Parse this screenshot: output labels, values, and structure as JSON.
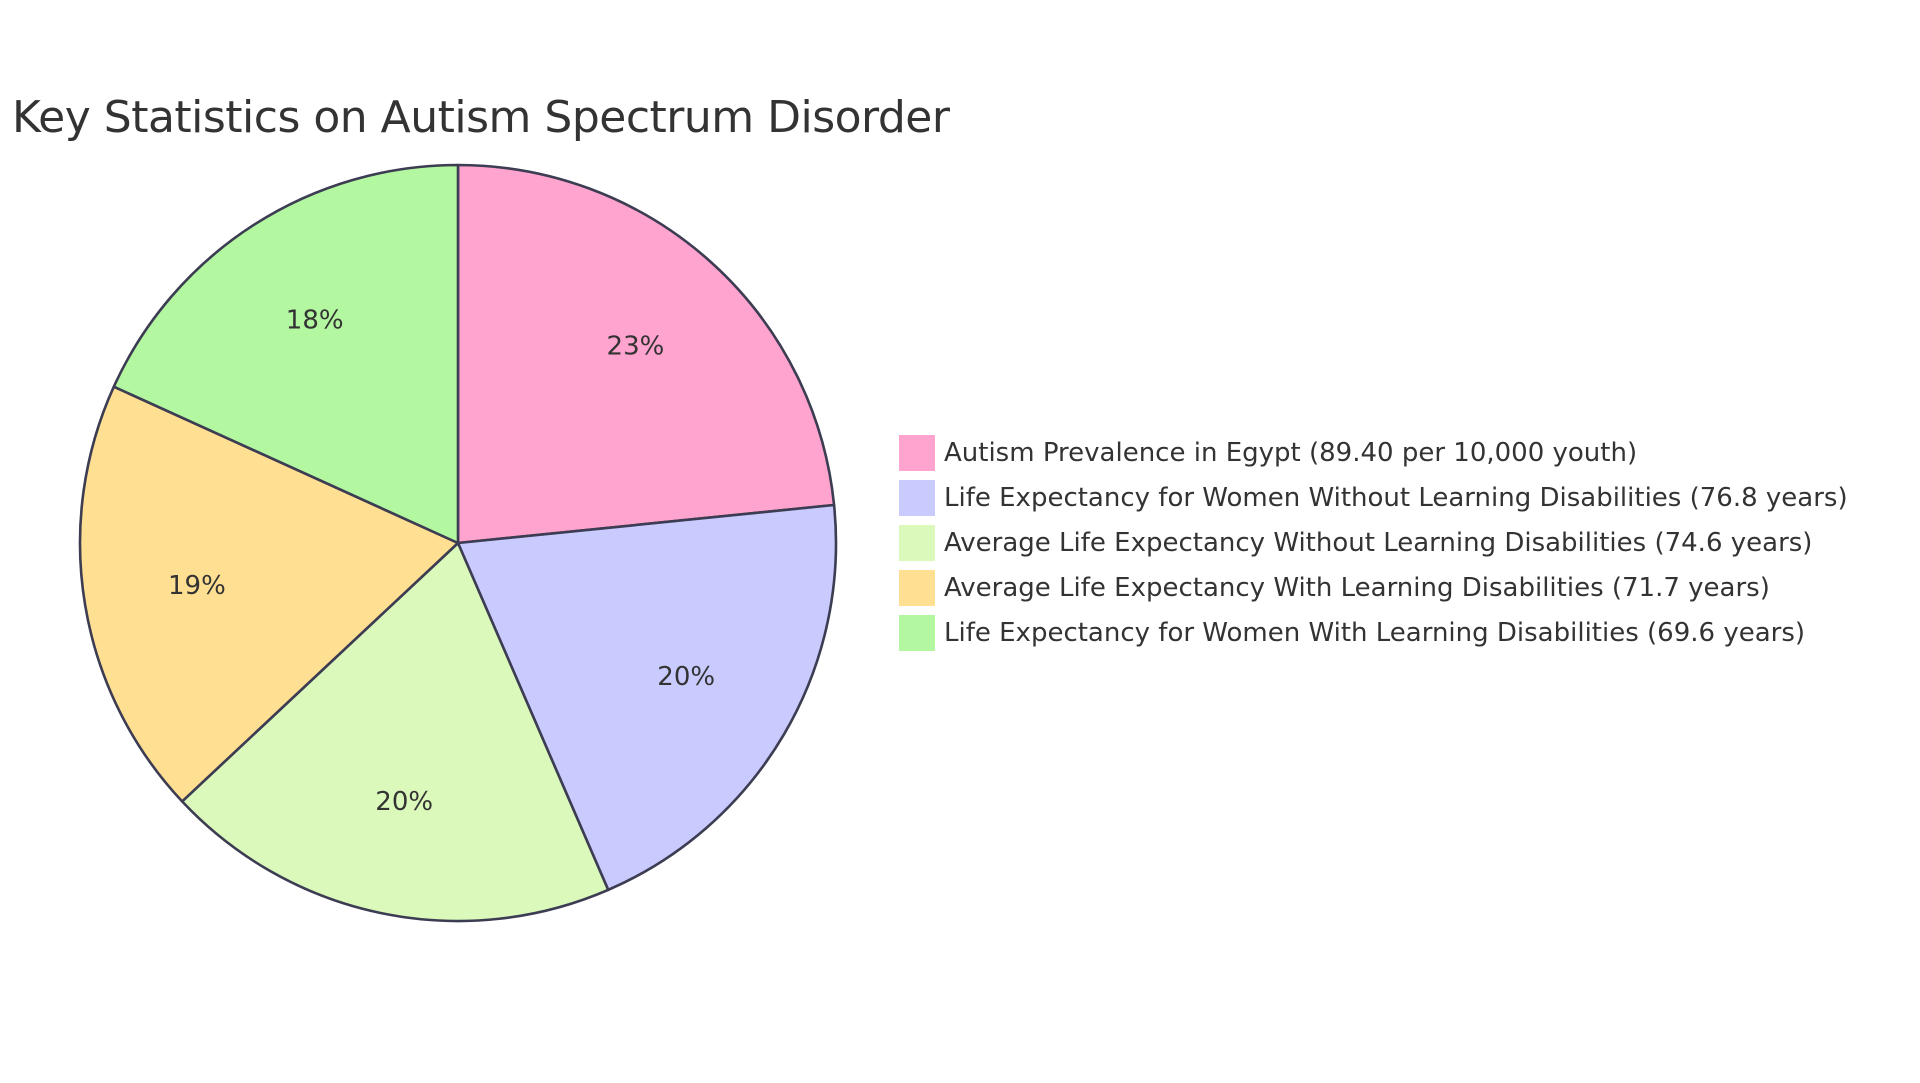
{
  "chart_data": {
    "type": "pie",
    "title": "Key Statistics on Autism Spectrum Disorder",
    "legend_position": "right",
    "slices": [
      {
        "label": "Autism Prevalence in Egypt (89.40 per 10,000 youth)",
        "value": 89.4,
        "percent_label": "23%",
        "color": "#ffa3cf"
      },
      {
        "label": "Life Expectancy for Women Without Learning Disabilities (76.8 years)",
        "value": 76.8,
        "percent_label": "20%",
        "color": "#c9cbff"
      },
      {
        "label": "Average Life Expectancy Without Learning Disabilities (74.6 years)",
        "value": 74.6,
        "percent_label": "20%",
        "color": "#dcf9bc"
      },
      {
        "label": "Average Life Expectancy With Learning Disabilities (71.7 years)",
        "value": 71.7,
        "percent_label": "19%",
        "color": "#ffdf92"
      },
      {
        "label": "Life Expectancy for Women With Learning Disabilities (69.6 years)",
        "value": 69.6,
        "percent_label": "18%",
        "color": "#b3f7a1"
      }
    ],
    "stroke_color": "#3c3c52"
  }
}
